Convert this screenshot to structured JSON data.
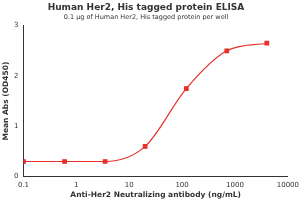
{
  "chart_data": {
    "type": "scatter",
    "title": "Human Her2, His tagged protein ELISA",
    "subtitle": "0.1 μg of Human Her2, His tagged protein per well",
    "x_label": "Anti-Her2 Neutralizing antibody (ng/mL)",
    "y_label": "Mean Abs (OD450)",
    "x": [
      0.1,
      0.6,
      3.5,
      20,
      120,
      700,
      4000
    ],
    "values": [
      0.3,
      0.3,
      0.3,
      0.6,
      1.75,
      2.5,
      2.65
    ],
    "color": "#e8302a",
    "xlim": [
      0.1,
      10000
    ],
    "ylim": [
      0,
      3
    ],
    "xticks": [
      0.1,
      1,
      10,
      100,
      1000,
      10000
    ],
    "yticks": [
      0,
      1,
      2,
      3
    ],
    "log": "x",
    "grid": false,
    "marker": "square",
    "line_style": "solid"
  }
}
